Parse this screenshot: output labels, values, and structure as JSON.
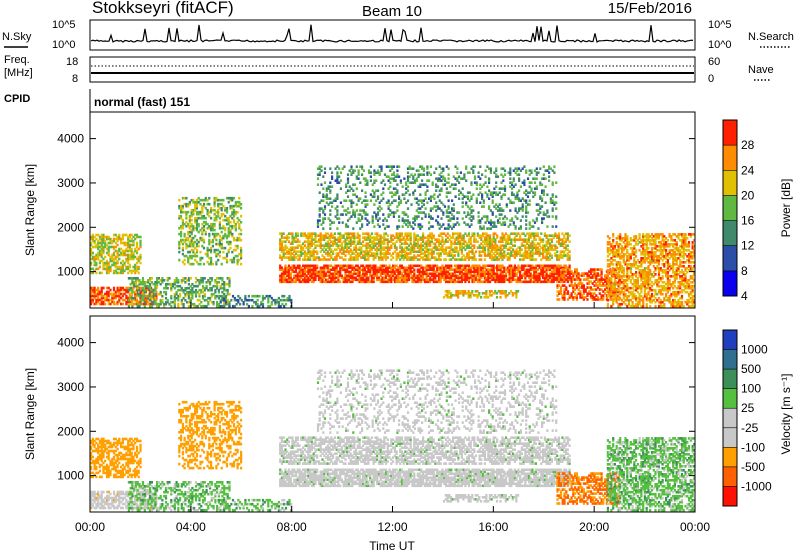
{
  "header": {
    "station": "Stokkseyri (fitACF)",
    "beam": "Beam 10",
    "date": "15/Feb/2016"
  },
  "top_panels": {
    "nsky": {
      "label": "N.Sky",
      "tick_top": "10^5",
      "tick_bottom": "10^0"
    },
    "nsearch": {
      "label": "N.Search",
      "tick_top": "10^5",
      "tick_bottom": "10^0"
    },
    "freq": {
      "label_line1": "Freq.",
      "label_line2": "[MHz]",
      "tick_top": "18",
      "tick_bottom": "8"
    },
    "nave": {
      "label": "Nave",
      "tick_top": "60",
      "tick_bottom": "0"
    },
    "cpid": {
      "label": "CPID",
      "value": "normal (fast) 151"
    }
  },
  "chart_data": [
    {
      "type": "heatmap",
      "title": "",
      "ylabel": "Slant Range [km]",
      "yticks": [
        "1000",
        "2000",
        "3000",
        "4000"
      ],
      "ylim": [
        180,
        4600
      ],
      "colorbar_label": "Power [dB]",
      "colorbar_ticks": [
        "4",
        "8",
        "12",
        "16",
        "20",
        "24",
        "28"
      ],
      "colors": [
        "#0a00ee",
        "#2b4fa8",
        "#3f8a6c",
        "#5fb840",
        "#e0c000",
        "#ff8c00",
        "#ff2000"
      ],
      "value_range": [
        0,
        30
      ]
    },
    {
      "type": "heatmap",
      "title": "",
      "xlabel": "Time UT",
      "ylabel": "Slant Range [km]",
      "yticks": [
        "1000",
        "2000",
        "3000",
        "4000"
      ],
      "xticks": [
        "00:00",
        "04:00",
        "08:00",
        "12:00",
        "16:00",
        "20:00",
        "00:00"
      ],
      "xlim": [
        0,
        24
      ],
      "ylim": [
        180,
        4600
      ],
      "colorbar_label": "Velocity [m s⁻¹]",
      "colorbar_ticks": [
        "1000",
        "500",
        "100",
        "25",
        "-25",
        "-100",
        "-500",
        "-1000"
      ],
      "colors": [
        "#1f3fbf",
        "#2f6f8f",
        "#3d8f5a",
        "#55c040",
        "#c8c8c8",
        "#c8c8c8",
        "#ffa000",
        "#ff6000",
        "#ff1000"
      ],
      "value_range": [
        -1000,
        1000
      ]
    }
  ]
}
